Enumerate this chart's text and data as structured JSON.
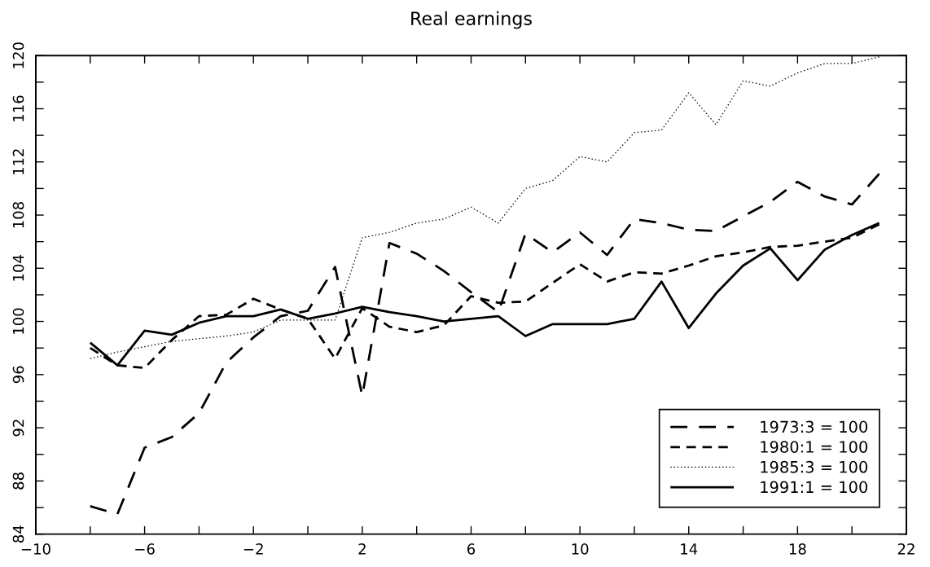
{
  "chart_data": {
    "type": "line",
    "title": "Real earnings",
    "x": [
      -8,
      -7,
      -6,
      -5,
      -4,
      -3,
      -2,
      -1,
      0,
      1,
      2,
      3,
      4,
      5,
      6,
      7,
      8,
      9,
      10,
      11,
      12,
      13,
      14,
      15,
      16,
      17,
      18,
      19,
      20,
      21
    ],
    "xlim": [
      -10,
      22
    ],
    "xticks": [
      -10,
      {
        "value": -8,
        "label": null
      },
      -6,
      {
        "value": -4,
        "label": null
      },
      -2,
      {
        "value": 0,
        "label": null
      },
      2,
      {
        "value": 4,
        "label": null
      },
      6,
      {
        "value": 8,
        "label": null
      },
      10,
      {
        "value": 12,
        "label": null
      },
      14,
      {
        "value": 16,
        "label": null
      },
      18,
      {
        "value": 20,
        "label": null
      },
      22
    ],
    "ylim": [
      84,
      120
    ],
    "yticks": [
      84,
      {
        "value": 86,
        "label": null
      },
      88,
      {
        "value": 90,
        "label": null
      },
      92,
      {
        "value": 94,
        "label": null
      },
      96,
      {
        "value": 98,
        "label": null
      },
      100,
      {
        "value": 102,
        "label": null
      },
      104,
      {
        "value": 106,
        "label": null
      },
      108,
      {
        "value": 110,
        "label": null
      },
      112,
      {
        "value": 114,
        "label": null
      },
      116,
      {
        "value": 118,
        "label": null
      },
      120
    ],
    "legend": "bottom right",
    "series": [
      {
        "name": "1973:3 = 100",
        "color": "#000000",
        "line_style": "dashed",
        "values": [
          86.1,
          85.5,
          90.5,
          91.3,
          93.1,
          96.9,
          98.8,
          100.4,
          100.8,
          104.1,
          94.4,
          105.9,
          105.1,
          103.8,
          102.2,
          100.7,
          106.6,
          105.2,
          106.7,
          105.0,
          107.7,
          107.4,
          106.9,
          106.8,
          107.9,
          109.0,
          110.5,
          109.4,
          108.8,
          111.1
        ]
      },
      {
        "name": "1980:1 = 100",
        "color": "#000000",
        "line_style": "dashed",
        "values": [
          98.0,
          96.7,
          96.5,
          98.6,
          100.4,
          100.5,
          101.7,
          100.9,
          100.2,
          97.2,
          101.0,
          99.6,
          99.2,
          99.7,
          101.9,
          101.4,
          101.5,
          102.9,
          104.3,
          103.0,
          103.7,
          103.6,
          104.2,
          104.9,
          105.2,
          105.6,
          105.7,
          106.0,
          106.3,
          107.3
        ]
      },
      {
        "name": "1985:3 = 100",
        "color": "#000000",
        "line_style": "dotted",
        "values": [
          97.2,
          97.7,
          98.1,
          98.5,
          98.7,
          98.9,
          99.2,
          100.1,
          100.1,
          100.1,
          106.3,
          106.7,
          107.4,
          107.7,
          108.6,
          107.4,
          110.0,
          110.6,
          112.4,
          112.0,
          114.2,
          114.4,
          117.2,
          114.8,
          118.1,
          117.7,
          118.7,
          119.4,
          119.4,
          119.9
        ]
      },
      {
        "name": "1991:1 = 100",
        "color": "#000000",
        "line_style": "solid",
        "values": [
          98.4,
          96.7,
          99.3,
          99.0,
          99.9,
          100.4,
          100.4,
          100.9,
          100.2,
          100.6,
          101.1,
          100.7,
          100.4,
          100.0,
          100.2,
          100.4,
          98.9,
          99.8,
          99.8,
          99.8,
          100.2,
          103.0,
          99.5,
          102.1,
          104.2,
          105.5,
          103.1,
          105.4,
          106.5,
          107.4
        ]
      }
    ]
  }
}
